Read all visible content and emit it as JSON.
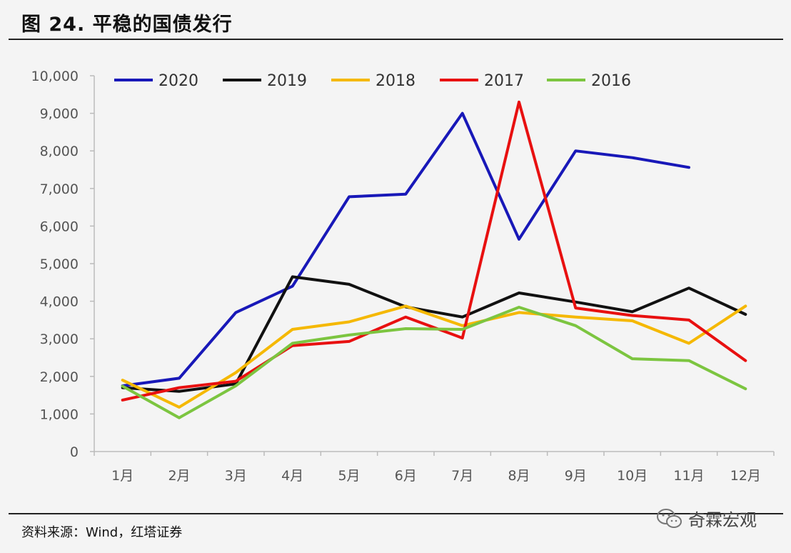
{
  "header": {
    "title": "图 24. 平稳的国债发行"
  },
  "footer": {
    "source": "资料来源：Wind，红塔证券",
    "watermark": "奇霖宏观",
    "watermark_icon": "wechat-icon"
  },
  "chart_data": {
    "type": "line",
    "title": "",
    "xlabel": "",
    "ylabel": "",
    "categories": [
      "1月",
      "2月",
      "3月",
      "4月",
      "5月",
      "6月",
      "7月",
      "8月",
      "9月",
      "10月",
      "11月",
      "12月"
    ],
    "ylim": [
      0,
      10000
    ],
    "yticks": [
      "0",
      "1,000",
      "2,000",
      "3,000",
      "4,000",
      "5,000",
      "6,000",
      "7,000",
      "8,000",
      "9,000",
      "10,000"
    ],
    "grid": false,
    "legend_position": "top",
    "series": [
      {
        "name": "2020",
        "color": "#1818b8",
        "values": [
          1750,
          1950,
          3700,
          4400,
          6780,
          6850,
          9000,
          5650,
          8000,
          7820,
          7560,
          null
        ]
      },
      {
        "name": "2019",
        "color": "#111111",
        "values": [
          1700,
          1600,
          1800,
          4650,
          4450,
          3850,
          3580,
          4220,
          3980,
          3720,
          4350,
          3650
        ]
      },
      {
        "name": "2018",
        "color": "#f5b800",
        "values": [
          1900,
          1180,
          2100,
          3250,
          3450,
          3870,
          3350,
          3700,
          3580,
          3480,
          2880,
          3870
        ]
      },
      {
        "name": "2017",
        "color": "#e81010",
        "values": [
          1370,
          1700,
          1870,
          2820,
          2930,
          3580,
          3020,
          9300,
          3820,
          3620,
          3500,
          2420
        ]
      },
      {
        "name": "2016",
        "color": "#7cc540",
        "values": [
          1740,
          900,
          1750,
          2880,
          3100,
          3270,
          3250,
          3840,
          3350,
          2470,
          2420,
          1670
        ]
      }
    ]
  }
}
